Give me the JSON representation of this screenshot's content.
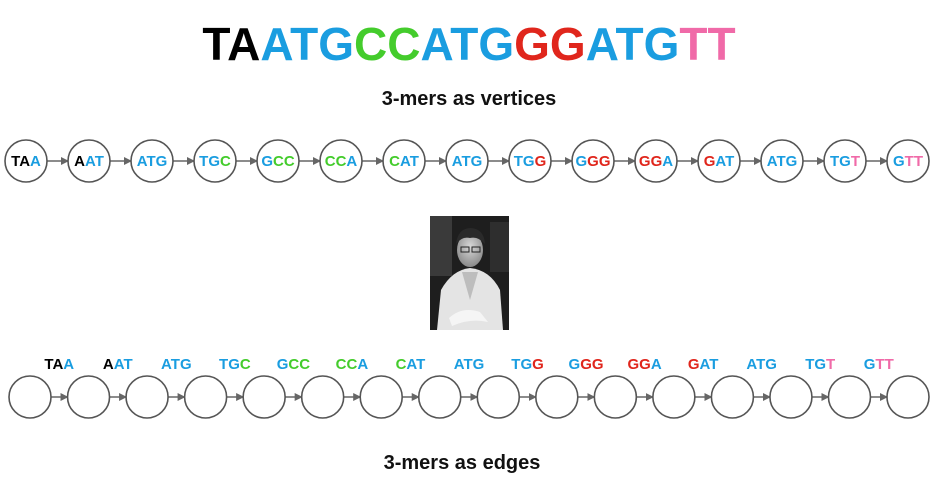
{
  "title": {
    "segments": [
      {
        "text": "TA",
        "color": "#000000"
      },
      {
        "text": "AT",
        "color": "#1a9de0"
      },
      {
        "text": "G",
        "color": "#1a9de0"
      },
      {
        "text": "CC",
        "color": "#44cc2c"
      },
      {
        "text": "ATG",
        "color": "#1a9de0"
      },
      {
        "text": "GG",
        "color": "#e0261c"
      },
      {
        "text": "ATG",
        "color": "#1a9de0"
      },
      {
        "text": "TT",
        "color": "#f06aa8"
      }
    ]
  },
  "vertices_heading": "3-mers as vertices",
  "edges_heading": "3-mers as edges",
  "colors": {
    "K": "#000000",
    "B": "#1a9de0",
    "G": "#44cc2c",
    "R": "#e0261c",
    "P": "#f06aa8"
  },
  "kmers": [
    {
      "text": "TAA",
      "colors": [
        "K",
        "K",
        "B"
      ]
    },
    {
      "text": "AAT",
      "colors": [
        "K",
        "B",
        "B"
      ]
    },
    {
      "text": "ATG",
      "colors": [
        "B",
        "B",
        "B"
      ]
    },
    {
      "text": "TGC",
      "colors": [
        "B",
        "B",
        "G"
      ]
    },
    {
      "text": "GCC",
      "colors": [
        "B",
        "G",
        "G"
      ]
    },
    {
      "text": "CCA",
      "colors": [
        "G",
        "G",
        "B"
      ]
    },
    {
      "text": "CAT",
      "colors": [
        "G",
        "B",
        "B"
      ]
    },
    {
      "text": "ATG",
      "colors": [
        "B",
        "B",
        "B"
      ]
    },
    {
      "text": "TGG",
      "colors": [
        "B",
        "B",
        "R"
      ]
    },
    {
      "text": "GGG",
      "colors": [
        "B",
        "R",
        "R"
      ]
    },
    {
      "text": "GGA",
      "colors": [
        "R",
        "R",
        "B"
      ]
    },
    {
      "text": "GAT",
      "colors": [
        "R",
        "B",
        "B"
      ]
    },
    {
      "text": "ATG",
      "colors": [
        "B",
        "B",
        "B"
      ]
    },
    {
      "text": "TGT",
      "colors": [
        "B",
        "B",
        "P"
      ]
    },
    {
      "text": "GTT",
      "colors": [
        "B",
        "P",
        "P"
      ]
    }
  ],
  "portrait": {
    "description": "black-and-white portrait photo",
    "tone": "grayscale"
  }
}
